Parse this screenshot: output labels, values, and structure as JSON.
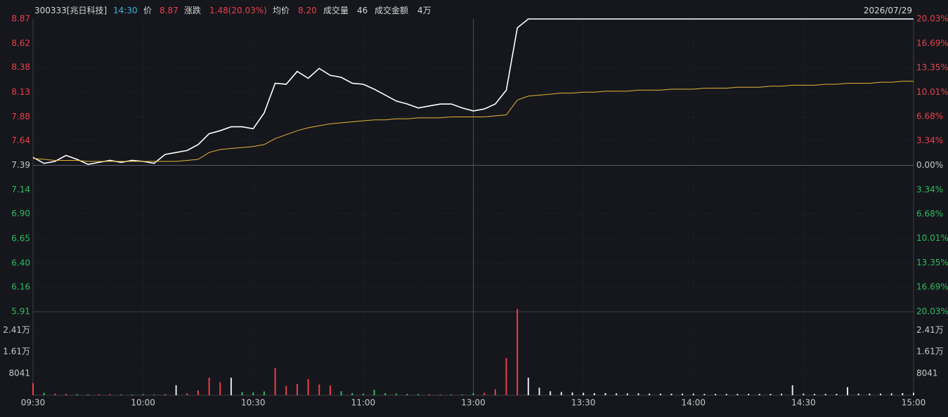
{
  "header": {
    "code": "300333[兆日科技]",
    "time": "14:30",
    "fields": [
      {
        "label": "价",
        "value": "8.87"
      },
      {
        "label": "涨跌",
        "value": "1.48(20.03%)"
      },
      {
        "label": "均价",
        "value": "8.20"
      },
      {
        "label": "成交量",
        "value": "46"
      },
      {
        "label": "成交金额",
        "value": "4万"
      }
    ],
    "date": "2026/07/29"
  },
  "chart_data": [
    {
      "type": "line",
      "x": [
        0,
        3,
        6,
        9,
        12,
        15,
        18,
        21,
        24,
        27,
        30,
        33,
        36,
        39,
        42,
        45,
        48,
        51,
        54,
        57,
        60,
        63,
        66,
        69,
        72,
        75,
        78,
        81,
        84,
        87,
        90,
        93,
        96,
        99,
        102,
        105,
        108,
        111,
        114,
        117,
        120,
        123,
        126,
        129,
        132,
        135,
        138,
        141,
        144,
        147,
        150,
        153,
        156,
        159,
        162,
        165,
        168,
        171,
        174,
        177,
        180,
        183,
        186,
        189,
        192,
        195,
        198,
        201,
        204,
        207,
        210,
        213,
        216,
        219,
        222,
        225,
        228,
        231,
        234,
        237,
        240
      ],
      "series": [
        {
          "color": "#ffffff",
          "values": [
            7.47,
            7.41,
            7.43,
            7.49,
            7.45,
            7.4,
            7.42,
            7.44,
            7.42,
            7.44,
            7.43,
            7.41,
            7.5,
            7.52,
            7.54,
            7.6,
            7.71,
            7.74,
            7.78,
            7.78,
            7.76,
            7.92,
            8.22,
            8.21,
            8.34,
            8.27,
            8.37,
            8.3,
            8.28,
            8.22,
            8.21,
            8.16,
            8.1,
            8.04,
            8.01,
            7.97,
            7.99,
            8.01,
            8.01,
            7.97,
            7.94,
            7.96,
            8.01,
            8.15,
            8.78,
            8.87,
            8.87,
            8.87,
            8.87,
            8.87,
            8.87,
            8.87,
            8.87,
            8.87,
            8.87,
            8.87,
            8.87,
            8.87,
            8.87,
            8.87,
            8.87,
            8.87,
            8.87,
            8.87,
            8.87,
            8.87,
            8.87,
            8.87,
            8.87,
            8.87,
            8.87,
            8.87,
            8.87,
            8.87,
            8.87,
            8.87,
            8.87,
            8.87,
            8.87,
            8.87,
            8.87
          ]
        },
        {
          "color": "#e8b23a",
          "values": [
            7.46,
            7.45,
            7.44,
            7.44,
            7.44,
            7.43,
            7.43,
            7.43,
            7.43,
            7.43,
            7.43,
            7.43,
            7.43,
            7.43,
            7.44,
            7.45,
            7.52,
            7.55,
            7.56,
            7.57,
            7.58,
            7.6,
            7.66,
            7.7,
            7.74,
            7.77,
            7.79,
            7.81,
            7.82,
            7.83,
            7.84,
            7.85,
            7.85,
            7.86,
            7.86,
            7.87,
            7.87,
            7.87,
            7.88,
            7.88,
            7.88,
            7.88,
            7.89,
            7.9,
            8.05,
            8.09,
            8.1,
            8.11,
            8.12,
            8.12,
            8.13,
            8.13,
            8.14,
            8.14,
            8.14,
            8.15,
            8.15,
            8.15,
            8.16,
            8.16,
            8.16,
            8.17,
            8.17,
            8.17,
            8.18,
            8.18,
            8.18,
            8.19,
            8.19,
            8.2,
            8.2,
            8.2,
            8.21,
            8.21,
            8.22,
            8.22,
            8.22,
            8.23,
            8.23,
            8.24,
            8.24
          ]
        }
      ],
      "xlim": [
        0,
        240
      ],
      "ylim": [
        5.91,
        8.87
      ],
      "yticks": [
        8.87,
        8.62,
        8.38,
        8.13,
        7.88,
        7.64,
        7.39,
        7.14,
        {
          "value": 6.9,
          "label": "6.90"
        },
        6.65,
        {
          "value": 6.4,
          "label": "6.40"
        },
        6.16,
        5.91
      ],
      "y2lim": [
        -20.03,
        20.03
      ],
      "y2ticks": [
        {
          "value": 20.03,
          "label": "20.03%"
        },
        {
          "value": 16.69,
          "label": "16.69%"
        },
        {
          "value": 13.35,
          "label": "13.35%"
        },
        {
          "value": 10.01,
          "label": "10.01%"
        },
        {
          "value": 6.68,
          "label": "6.68%"
        },
        {
          "value": 3.34,
          "label": "3.34%"
        },
        {
          "value": 0,
          "label": "0.00%"
        },
        {
          "value": -3.34,
          "label": "3.34%"
        },
        {
          "value": -6.68,
          "label": "6.68%"
        },
        {
          "value": -10.01,
          "label": "10.01%"
        },
        {
          "value": -13.35,
          "label": "13.35%"
        },
        {
          "value": -16.69,
          "label": "16.69%"
        },
        {
          "value": -20.03,
          "label": "20.03%"
        }
      ],
      "base": 7.39,
      "up_color": "#e8404a",
      "down_color": "#2dbb5e",
      "flat_color": "#c8c8c8",
      "grid": true
    },
    {
      "type": "bar",
      "x": [
        0,
        3,
        6,
        9,
        12,
        15,
        18,
        21,
        24,
        27,
        30,
        33,
        36,
        39,
        42,
        45,
        48,
        51,
        54,
        57,
        60,
        63,
        66,
        69,
        72,
        75,
        78,
        81,
        84,
        87,
        90,
        93,
        96,
        99,
        102,
        105,
        108,
        111,
        114,
        117,
        120,
        123,
        126,
        129,
        132,
        135,
        138,
        141,
        144,
        147,
        150,
        153,
        156,
        159,
        162,
        165,
        168,
        171,
        174,
        177,
        180,
        183,
        186,
        189,
        192,
        195,
        198,
        201,
        204,
        207,
        210,
        213,
        216,
        219,
        222,
        225,
        228,
        231,
        234,
        237,
        240
      ],
      "values": [
        4500,
        900,
        600,
        500,
        400,
        300,
        300,
        400,
        300,
        300,
        400,
        300,
        500,
        3700,
        700,
        1800,
        6500,
        4800,
        6500,
        1200,
        1100,
        1400,
        10100,
        3500,
        4200,
        6000,
        4000,
        3600,
        1500,
        800,
        600,
        2000,
        800,
        600,
        500,
        400,
        400,
        300,
        300,
        300,
        800,
        900,
        2200,
        13800,
        32000,
        6500,
        2800,
        1500,
        1200,
        1000,
        900,
        800,
        800,
        700,
        700,
        700,
        600,
        600,
        600,
        600,
        600,
        500,
        500,
        500,
        500,
        500,
        500,
        500,
        600,
        3700,
        600,
        500,
        500,
        500,
        3000,
        600,
        600,
        600,
        700,
        800,
        900
      ],
      "colors": [
        "#e8404a",
        "#2dbb5e",
        "#e8404a",
        "#e8404a",
        "#2dbb5e",
        "#2dbb5e",
        "#e8404a",
        "#e8404a",
        "#2dbb5e",
        "#2dbb5e",
        "#2dbb5e",
        "#2dbb5e",
        "#e8404a",
        "#e6e6e6",
        "#e8404a",
        "#e8404a",
        "#e8404a",
        "#e8404a",
        "#e6e6e6",
        "#2dbb5e",
        "#2dbb5e",
        "#2dbb5e",
        "#e8404a",
        "#e8404a",
        "#e8404a",
        "#e8404a",
        "#e8404a",
        "#e8404a",
        "#2dbb5e",
        "#2dbb5e",
        "#2dbb5e",
        "#2dbb5e",
        "#2dbb5e",
        "#2dbb5e",
        "#2dbb5e",
        "#2dbb5e",
        "#e8404a",
        "#e8404a",
        "#2dbb5e",
        "#2dbb5e",
        "#2dbb5e",
        "#e8404a",
        "#e8404a",
        "#e8404a",
        "#e8404a",
        "#e6e6e6",
        "#e6e6e6",
        "#e6e6e6",
        "#e6e6e6",
        "#e6e6e6",
        "#e6e6e6",
        "#e6e6e6",
        "#e6e6e6",
        "#e6e6e6",
        "#e6e6e6",
        "#e6e6e6",
        "#e6e6e6",
        "#e6e6e6",
        "#e6e6e6",
        "#e6e6e6",
        "#e6e6e6",
        "#e6e6e6",
        "#e6e6e6",
        "#e6e6e6",
        "#e6e6e6",
        "#e6e6e6",
        "#e6e6e6",
        "#e6e6e6",
        "#e6e6e6",
        "#e6e6e6",
        "#e6e6e6",
        "#e6e6e6",
        "#e6e6e6",
        "#e6e6e6",
        "#e6e6e6",
        "#e6e6e6",
        "#e6e6e6",
        "#e6e6e6",
        "#e6e6e6",
        "#e6e6e6",
        "#e6e6e6"
      ],
      "xlim": [
        0,
        240
      ],
      "xticks": [
        {
          "value": 0,
          "label": "09:30"
        },
        {
          "value": 30,
          "label": "10:00"
        },
        {
          "value": 60,
          "label": "10:30"
        },
        {
          "value": 90,
          "label": "11:00"
        },
        {
          "value": 120,
          "label": "13:00"
        },
        {
          "value": 150,
          "label": "13:30"
        },
        {
          "value": 180,
          "label": "14:00"
        },
        {
          "value": 210,
          "label": "14:30"
        },
        {
          "value": 240,
          "label": "15:00"
        }
      ],
      "ylim": [
        0,
        31000
      ],
      "yticks": [
        8041,
        {
          "value": 16100,
          "label": "1.61万"
        },
        {
          "value": 24100,
          "label": "2.41万"
        }
      ]
    }
  ]
}
